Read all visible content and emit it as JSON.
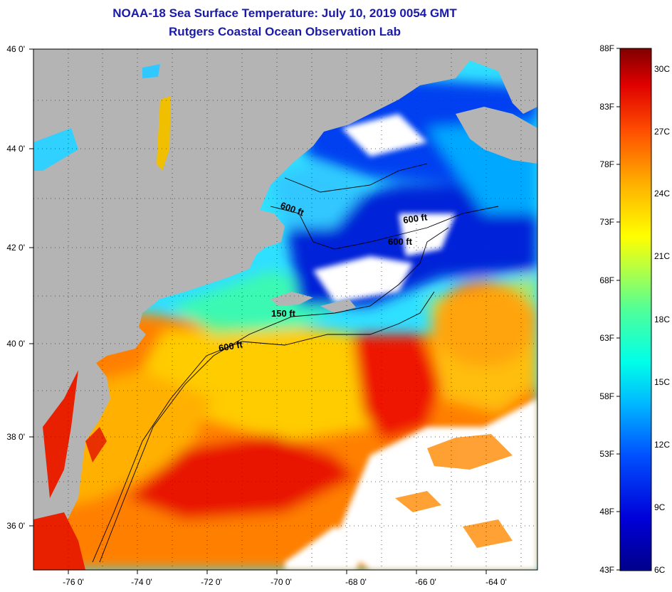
{
  "header": {
    "title_line1": "NOAA-18 Sea Surface Temperature:  July 10, 2019 0054 GMT",
    "title_line2": "Rutgers Coastal Ocean Observation Lab"
  },
  "axes": {
    "lat_labels": [
      "46 0'",
      "44 0'",
      "42 0'",
      "40 0'",
      "38 0'",
      "36 0'"
    ],
    "lon_labels": [
      "-76 0'",
      "-74 0'",
      "-72 0'",
      "-70 0'",
      "-68 0'",
      "-66 0'",
      "-64 0'"
    ]
  },
  "contours": {
    "labels": [
      "600 ft",
      "600 ft",
      "600 ft",
      "150 ft",
      "600 ft"
    ]
  },
  "colorbar": {
    "fahrenheit": [
      "88F",
      "83F",
      "78F",
      "73F",
      "68F",
      "63F",
      "58F",
      "53F",
      "48F",
      "43F"
    ],
    "celsius": [
      "30C",
      "27C",
      "24C",
      "21C",
      "18C",
      "15C",
      "12C",
      "9C",
      "6C"
    ]
  },
  "colors": {
    "land": "#b4b4b4",
    "cloud": "#ffffff",
    "title": "#1a1aa8"
  }
}
